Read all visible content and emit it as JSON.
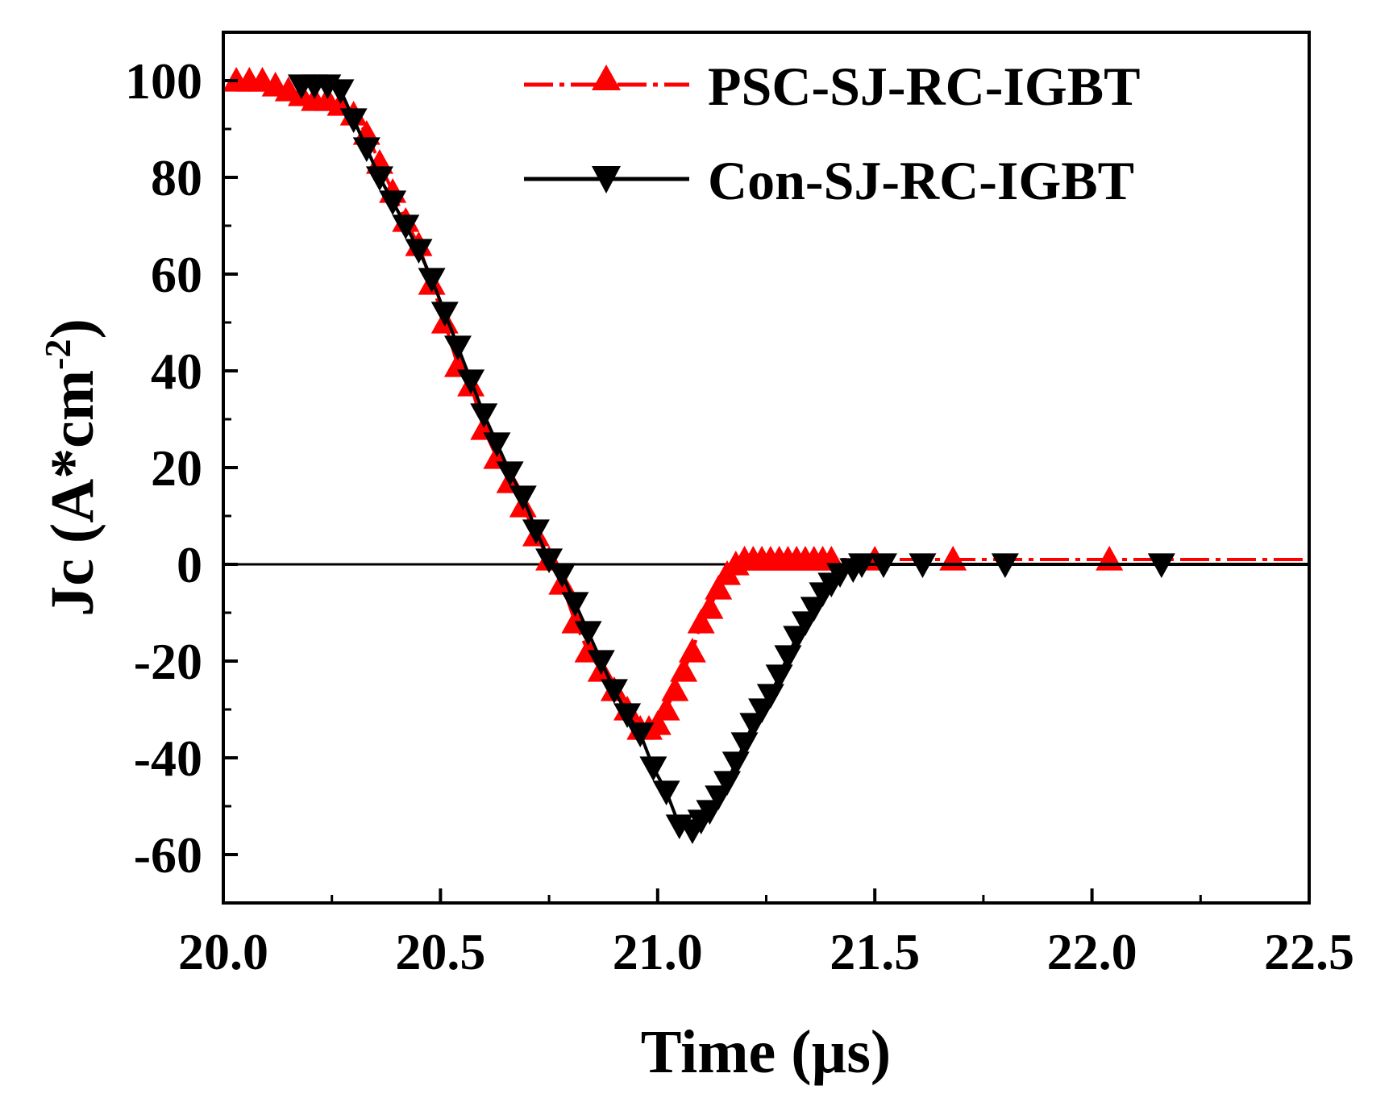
{
  "chart_data": {
    "type": "line",
    "title": "",
    "xlabel": "Time (µs)",
    "ylabel": {
      "main": "Jc (A*cm",
      "superscript": "-2",
      "close": ")"
    },
    "xlim": [
      20.0,
      22.5
    ],
    "ylim": [
      -70,
      110
    ],
    "xticks": [
      20.0,
      20.5,
      21.0,
      21.5,
      22.0,
      22.5
    ],
    "xtick_labels": [
      "20.0",
      "20.5",
      "21.0",
      "21.5",
      "22.0",
      "22.5"
    ],
    "yticks": [
      -60,
      -40,
      -20,
      0,
      20,
      40,
      60,
      80,
      100
    ],
    "ytick_labels": [
      "-60",
      "-40",
      "-20",
      "0",
      "20",
      "40",
      "60",
      "80",
      "100"
    ],
    "grid": false,
    "legend_position": "top-right",
    "series": [
      {
        "name": "PSC-SJ-RC-IGBT",
        "color": "#ff0000",
        "marker": "triangle-up",
        "line_style": "dash-dot",
        "x": [
          20.03,
          20.06,
          20.09,
          20.12,
          20.15,
          20.18,
          20.21,
          20.24,
          20.27,
          20.3,
          20.33,
          20.36,
          20.39,
          20.42,
          20.45,
          20.48,
          20.51,
          20.54,
          20.57,
          20.6,
          20.63,
          20.66,
          20.69,
          20.72,
          20.75,
          20.78,
          20.81,
          20.84,
          20.87,
          20.9,
          20.93,
          20.96,
          20.98,
          21.0,
          21.02,
          21.04,
          21.06,
          21.08,
          21.1,
          21.12,
          21.14,
          21.16,
          21.18,
          21.2,
          21.22,
          21.24,
          21.26,
          21.28,
          21.3,
          21.32,
          21.34,
          21.36,
          21.38,
          21.4,
          21.5,
          21.68,
          22.04
        ],
        "y": [
          100,
          100,
          100,
          99,
          98,
          97,
          96,
          96,
          95,
          93,
          89,
          83,
          77,
          71,
          66,
          58,
          50,
          41,
          37,
          28,
          22,
          17,
          12,
          6,
          1,
          -4,
          -12,
          -18,
          -22,
          -26,
          -30,
          -34,
          -34,
          -33,
          -30,
          -26,
          -22,
          -18,
          -12,
          -9,
          -5,
          -2,
          0,
          1,
          1,
          1,
          1,
          1,
          1,
          1,
          1,
          1,
          1,
          1,
          1,
          1,
          1
        ]
      },
      {
        "name": "Con-SJ-RC-IGBT",
        "color": "#000000",
        "marker": "triangle-down",
        "line_style": "solid",
        "x": [
          20.18,
          20.21,
          20.24,
          20.27,
          20.3,
          20.33,
          20.36,
          20.39,
          20.42,
          20.45,
          20.48,
          20.51,
          20.54,
          20.57,
          20.6,
          20.63,
          20.66,
          20.69,
          20.72,
          20.75,
          20.78,
          20.81,
          20.84,
          20.87,
          20.9,
          20.93,
          20.96,
          20.99,
          21.02,
          21.05,
          21.08,
          21.1,
          21.12,
          21.14,
          21.16,
          21.18,
          21.2,
          21.22,
          21.24,
          21.26,
          21.28,
          21.3,
          21.32,
          21.34,
          21.36,
          21.38,
          21.4,
          21.42,
          21.45,
          21.47,
          21.52,
          21.61,
          21.8,
          22.16
        ],
        "y": [
          99,
          99,
          99,
          98,
          92,
          86,
          80,
          75,
          70,
          65,
          59,
          52,
          45,
          38,
          31,
          25,
          19,
          14,
          7,
          1,
          -2,
          -8,
          -14,
          -20,
          -26,
          -31,
          -35,
          -42,
          -47,
          -54,
          -55,
          -53,
          -51,
          -48,
          -45,
          -41,
          -37,
          -33,
          -30,
          -27,
          -23,
          -19,
          -15,
          -12,
          -9,
          -6,
          -4,
          -2,
          -1,
          0,
          0,
          0,
          0,
          0
        ]
      }
    ]
  }
}
